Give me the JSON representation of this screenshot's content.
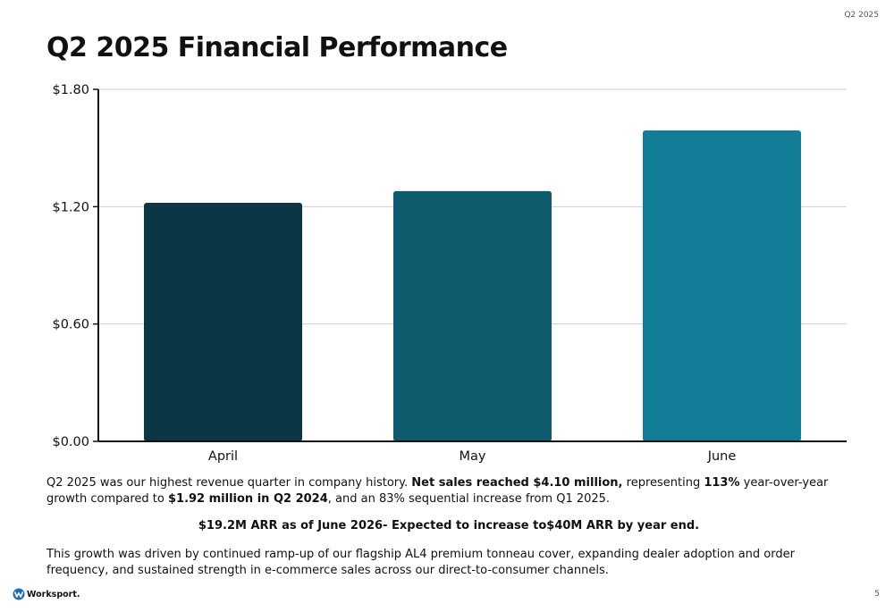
{
  "header": {
    "corner_tag": "Q2 2025",
    "title": "Q2 2025 Financial Performance"
  },
  "chart_data": {
    "type": "bar",
    "categories": [
      "April",
      "May",
      "June"
    ],
    "values": [
      1.22,
      1.28,
      1.59
    ],
    "ylim": [
      0,
      1.8
    ],
    "yticks": [
      0,
      0.6,
      1.2,
      1.8
    ],
    "ytick_labels": [
      "$0.00",
      "$0.60",
      "$1.20",
      "$1.80"
    ],
    "bar_colors": [
      "#0a3745",
      "#0d5b6d",
      "#117d97"
    ],
    "grid": true,
    "title": "",
    "xlabel": "",
    "ylabel": ""
  },
  "body": {
    "p1": {
      "t1": "Q2 2025 was our highest revenue quarter in company history. ",
      "b1": "Net sales reached $4.10 million,",
      "t2": " representing ",
      "b2": "113%",
      "t3": " year-over-year growth compared to ",
      "b3": "$1.92 million in Q2 2024",
      "t4": ", and an 83% sequential increase from Q1 2025."
    },
    "p2": "$19.2M ARR as of June 2026- Expected to increase to$40M ARR by year end.",
    "p3": "This growth was driven by continued ramp-up of our flagship AL4 premium tonneau cover, expanding dealer adoption and order frequency, and sustained strength in e-commerce sales across our direct-to-consumer channels."
  },
  "footer": {
    "logo_text": "Worksport.",
    "page_number": "5"
  },
  "colors": {
    "logo_blue": "#1b6fb5"
  }
}
